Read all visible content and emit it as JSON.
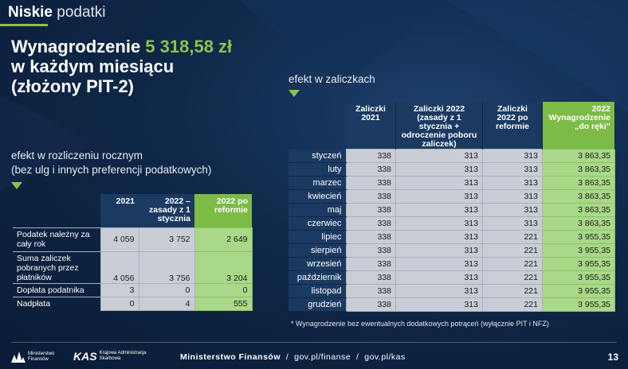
{
  "brand": {
    "strong": "Niskie",
    "light": " podatki"
  },
  "headline": {
    "line1_pre": "Wynagrodzenie ",
    "line1_amount": "5 318,58 zł",
    "line2": "w każdym miesiącu",
    "line3": "(złożony PIT-2)"
  },
  "annual": {
    "label_line1": "efekt w rozliczeniu rocznym",
    "label_line2": "(bez ulg i innych preferencji podatkowych)",
    "headers": [
      "2021",
      "2022 – zasady z 1 stycznia",
      "2022 po reformie"
    ],
    "rows": [
      {
        "label": "Podatek należny za cały rok",
        "values": [
          "4 059",
          "3 752",
          "2 649"
        ]
      },
      {
        "label": "Suma zaliczek pobranych przez płatników",
        "values": [
          "4 056",
          "3 756",
          "3 204"
        ]
      },
      {
        "label": "Dopłata podatnika",
        "values": [
          "3",
          "0",
          "0"
        ]
      },
      {
        "label": "Nadpłata",
        "values": [
          "0",
          "4",
          "555"
        ]
      }
    ]
  },
  "monthly": {
    "label": "efekt w zaliczkach",
    "headers": [
      "Zaliczki 2021",
      "Zaliczki 2022 (zasady z 1 stycznia + odroczenie poboru zaliczek)",
      "Zaliczki 2022 po reformie",
      "2022 Wynagrodzenie „do ręki”"
    ],
    "rows": [
      {
        "month": "styczeń",
        "values": [
          "338",
          "313",
          "313",
          "3 863,35"
        ]
      },
      {
        "month": "luty",
        "values": [
          "338",
          "313",
          "313",
          "3 863,35"
        ]
      },
      {
        "month": "marzec",
        "values": [
          "338",
          "313",
          "313",
          "3 863,35"
        ]
      },
      {
        "month": "kwiecień",
        "values": [
          "338",
          "313",
          "313",
          "3 863,35"
        ]
      },
      {
        "month": "maj",
        "values": [
          "338",
          "313",
          "313",
          "3 863,35"
        ]
      },
      {
        "month": "czerwiec",
        "values": [
          "338",
          "313",
          "313",
          "3 863,35"
        ]
      },
      {
        "month": "lipiec",
        "values": [
          "338",
          "313",
          "221",
          "3 955,35"
        ]
      },
      {
        "month": "sierpień",
        "values": [
          "338",
          "313",
          "221",
          "3 955,35"
        ]
      },
      {
        "month": "wrzesień",
        "values": [
          "338",
          "313",
          "221",
          "3 955,35"
        ]
      },
      {
        "month": "październik",
        "values": [
          "338",
          "313",
          "221",
          "3 955,35"
        ]
      },
      {
        "month": "listopad",
        "values": [
          "338",
          "313",
          "221",
          "3 955,35"
        ]
      },
      {
        "month": "grudzień",
        "values": [
          "338",
          "313",
          "221",
          "3 955,35"
        ]
      }
    ],
    "footnote": "* Wynagrodzenie bez ewentualnych dodatkowych potrąceń (wyłącznie PIT i NFZ)"
  },
  "footer": {
    "logo1_line1": "Ministerstwo",
    "logo1_line2": "Finansów",
    "logo2_mark": "KAS",
    "logo2_line1": "Krajowa Administracja",
    "logo2_line2": "Skarbowa",
    "ministry": "Ministerstwo Finansów",
    "link1": "gov.pl/finanse",
    "link2": "gov.pl/kas",
    "separator": "/",
    "page_number": "13"
  },
  "colors": {
    "accent_green": "#8bc34a",
    "navy": "#0f2748",
    "header_navy": "#1b3a62"
  }
}
